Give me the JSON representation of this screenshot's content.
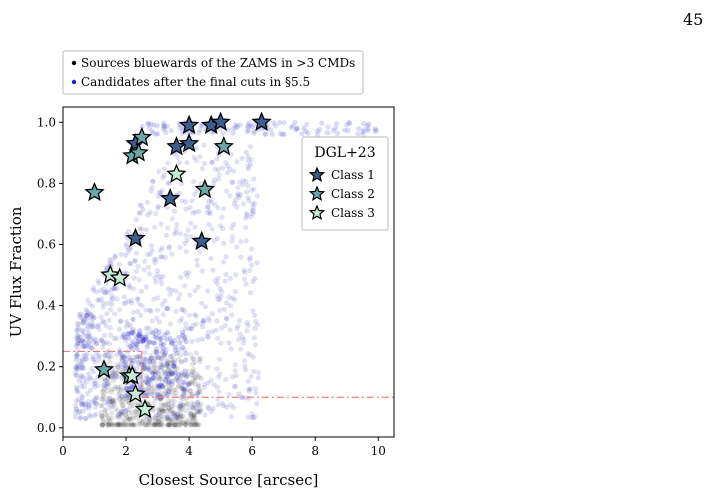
{
  "page": {
    "number": "45"
  },
  "chart_data": {
    "type": "scatter",
    "xlabel": "Closest Source [arcsec]",
    "ylabel": "UV Flux Fraction",
    "xlim": [
      0,
      10.5
    ],
    "ylim": [
      -0.03,
      1.05
    ],
    "xticks": [
      0,
      2,
      4,
      6,
      8,
      10
    ],
    "yticks": [
      0.0,
      0.2,
      0.4,
      0.6,
      0.8,
      1.0
    ],
    "ytick_labels": [
      "0.0",
      "0.2",
      "0.4",
      "0.6",
      "0.8",
      "1.0"
    ],
    "grid": false,
    "top_legend": {
      "placement": "above-plot",
      "entries": [
        {
          "label": "Sources bluewards of the ZAMS in >3 CMDs",
          "color": "#000000"
        },
        {
          "label": "Candidates after the final cuts in §5.5",
          "color": "#1f1fc8"
        }
      ]
    },
    "star_legend": {
      "placement": "top-right",
      "title": "DGL+23",
      "entries": [
        {
          "label": "Class 1",
          "color": "#3a5f8f"
        },
        {
          "label": "Class 2",
          "color": "#6aa7a7"
        },
        {
          "label": "Class 3",
          "color": "#c8ecd6"
        }
      ]
    },
    "cut_lines": {
      "color": "#f08080",
      "style": "dash-dot",
      "segments": [
        [
          [
            0,
            0.25
          ],
          [
            2.5,
            0.25
          ]
        ],
        [
          [
            2.5,
            0.25
          ],
          [
            2.5,
            0.1
          ]
        ],
        [
          [
            2.5,
            0.1
          ],
          [
            10.5,
            0.1
          ]
        ]
      ]
    },
    "series": [
      {
        "name": "Class 1",
        "marker": "star",
        "color": "#3a5f8f",
        "points": [
          [
            2.3,
            0.93
          ],
          [
            2.3,
            0.62
          ],
          [
            3.4,
            0.75
          ],
          [
            3.6,
            0.92
          ],
          [
            4.0,
            0.93
          ],
          [
            4.4,
            0.61
          ],
          [
            4.0,
            0.99
          ],
          [
            4.7,
            0.99
          ],
          [
            5.0,
            1.0
          ],
          [
            6.3,
            1.0
          ]
        ]
      },
      {
        "name": "Class 2",
        "marker": "star",
        "color": "#6aa7a7",
        "points": [
          [
            1.0,
            0.77
          ],
          [
            2.2,
            0.89
          ],
          [
            2.4,
            0.9
          ],
          [
            2.5,
            0.95
          ],
          [
            4.5,
            0.78
          ],
          [
            5.1,
            0.92
          ],
          [
            1.3,
            0.19
          ],
          [
            2.1,
            0.17
          ]
        ]
      },
      {
        "name": "Class 3",
        "marker": "star",
        "color": "#c8ecd6",
        "points": [
          [
            1.5,
            0.5
          ],
          [
            1.8,
            0.49
          ],
          [
            3.6,
            0.83
          ],
          [
            2.2,
            0.17
          ],
          [
            2.3,
            0.11
          ],
          [
            2.6,
            0.06
          ]
        ]
      }
    ]
  }
}
